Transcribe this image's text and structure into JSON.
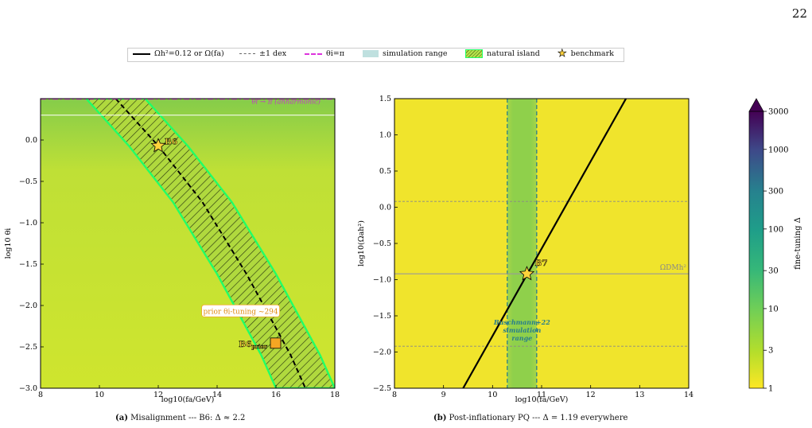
{
  "page_number": "22",
  "legend": {
    "items": [
      {
        "label": "Ωh²=0.12 or Ω(fa)",
        "style": "solid-black"
      },
      {
        "label": "±1 dex",
        "style": "dashed-grey"
      },
      {
        "label": "θi=π",
        "style": "dashdot-magenta"
      },
      {
        "label": "simulation range",
        "style": "teal-fill"
      },
      {
        "label": "natural island",
        "style": "green-hatch"
      },
      {
        "label": "benchmark",
        "style": "star"
      }
    ]
  },
  "colors": {
    "viridis_low": "#d9e53b",
    "viridis_mid": "#8ccc4b",
    "green_band": "#22ff66",
    "magenta": "#dd33dd",
    "teal": "#2a7f8a",
    "star": "#ffd33b",
    "marker_orange": "#f5a623"
  },
  "chart_data": [
    {
      "type": "heatmap",
      "panel": "a",
      "caption": "(a) Misalignment --- B6: Δ ≈ 2.2",
      "xlabel": "log10(fa/GeV)",
      "ylabel": "log10 θi",
      "xlim": [
        8,
        18
      ],
      "ylim": [
        -3.0,
        0.5
      ],
      "xticks": [
        "8",
        "10",
        "12",
        "14",
        "16",
        "18"
      ],
      "yticks": [
        "0.0",
        "−0.5",
        "−1.0",
        "−1.5",
        "−2.0",
        "−2.5",
        "−3.0"
      ],
      "grid": false,
      "relic_curve": {
        "x": [
          10.55,
          12.0,
          13.5,
          15.0,
          16.5,
          17.0
        ],
        "y": [
          0.5,
          -0.07,
          -0.75,
          -1.62,
          -2.6,
          -3.0
        ]
      },
      "island_half_width_dex": 1.0,
      "theta_pi_line_y": 0.497,
      "theta_pi_label": "θi → π (anharmonic)",
      "white_line_y": 0.3,
      "benchmarks": [
        {
          "name": "B6",
          "x": 12.0,
          "y": -0.07,
          "marker": "star"
        },
        {
          "name": "B6",
          "sub": "prior",
          "x": 16.0,
          "y": -2.46,
          "marker": "square"
        }
      ],
      "annotation": "prior θi-tuning ~294",
      "annotation_anchor": {
        "x": 14.8,
        "y": -2.07
      }
    },
    {
      "type": "heatmap",
      "panel": "b",
      "caption": "(b) Post-inflationary PQ --- Δ = 1.19 everywhere",
      "xlabel": "log10(fa/GeV)",
      "ylabel": "log10(Ωah²)",
      "xlim": [
        8,
        14
      ],
      "ylim": [
        -2.5,
        1.5
      ],
      "xticks": [
        "8",
        "9",
        "10",
        "11",
        "12",
        "13",
        "14"
      ],
      "yticks": [
        "1.5",
        "1.0",
        "0.5",
        "0.0",
        "−0.5",
        "−1.0",
        "−1.5",
        "−2.0",
        "−2.5"
      ],
      "grid": false,
      "relic_line": {
        "x": [
          9.4,
          12.72
        ],
        "y": [
          -2.5,
          1.5
        ]
      },
      "omega_dm_y": -0.92,
      "omega_dm_label": "ΩDMh²",
      "dex_lines_y": [
        0.08,
        -1.92
      ],
      "simulation_range_x": [
        10.3,
        10.9
      ],
      "simulation_label": [
        "Buschmann+22",
        "simulation",
        "range"
      ],
      "benchmarks": [
        {
          "name": "B7",
          "x": 10.7,
          "y": -0.92,
          "marker": "star"
        }
      ]
    }
  ],
  "colorbar": {
    "label": "fine-tuning Δ",
    "scale": "log",
    "range": [
      1,
      3000
    ],
    "extend": "max",
    "ticks": [
      "1",
      "3",
      "10",
      "30",
      "100",
      "300",
      "1000",
      "3000"
    ]
  },
  "captions": {
    "a": {
      "tag": "(a)",
      "text": "Misalignment --- B6: Δ ≈ 2.2"
    },
    "b": {
      "tag": "(b)",
      "text": "Post-inflationary PQ --- Δ = 1.19 everywhere"
    }
  }
}
